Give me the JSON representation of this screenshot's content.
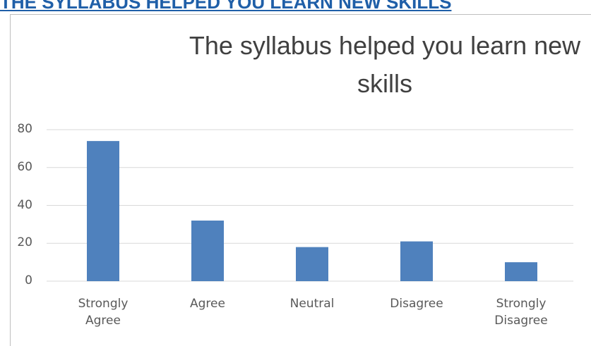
{
  "header": {
    "title": "THE SYLLABUS HELPED YOU LEARN NEW SKILLS"
  },
  "chart_data": {
    "type": "bar",
    "title": "The syllabus helped you learn new skills",
    "categories": [
      "Strongly Agree",
      "Agree",
      "Neutral",
      "Disagree",
      "Strongly Disagree"
    ],
    "values": [
      74,
      32,
      18,
      21,
      10
    ],
    "color": "#4f81bd",
    "ylim": [
      0,
      80
    ],
    "yticks": [
      0,
      20,
      40,
      60,
      80
    ],
    "grid": true
  }
}
